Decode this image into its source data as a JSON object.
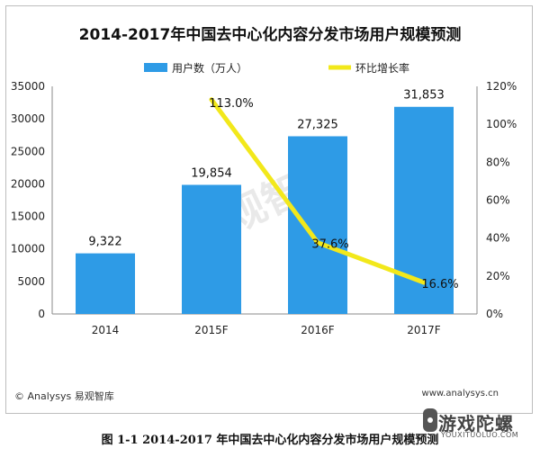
{
  "chart_data": {
    "type": "bar",
    "title": "2014-2017年中国去中心化内容分发市场用户规模预测",
    "categories": [
      "2014",
      "2015F",
      "2016F",
      "2017F"
    ],
    "series": [
      {
        "name": "用户数（万人）",
        "type": "bar",
        "axis": "left",
        "color": "#2e9be6",
        "values": [
          9322,
          19854,
          27325,
          31853
        ],
        "labels": [
          "9,322",
          "19,854",
          "27,325",
          "31,853"
        ]
      },
      {
        "name": "环比增长率",
        "type": "line",
        "axis": "right",
        "color": "#f2e81b",
        "values": [
          null,
          113.0,
          37.6,
          16.6
        ],
        "labels": [
          "",
          "113.0%",
          "37.6%",
          "16.6%"
        ]
      }
    ],
    "y_left": {
      "min": 0,
      "max": 35000,
      "ticks": [
        "0",
        "5000",
        "10000",
        "15000",
        "20000",
        "25000",
        "30000",
        "35000"
      ]
    },
    "y_right": {
      "min": 0,
      "max": 120,
      "ticks": [
        "0%",
        "20%",
        "40%",
        "60%",
        "80%",
        "100%",
        "120%"
      ]
    },
    "legend_position": "top-center",
    "watermark": "易观智库"
  },
  "footer": {
    "copyright": "© Analysys 易观智库",
    "website": "www.analysys.cn"
  },
  "logo": {
    "text": "游戏陀螺",
    "sub": "YOUXITUOLUO.COM"
  },
  "caption": "图  1-1 2014-2017 年中国去中心化内容分发市场用户规模预测"
}
